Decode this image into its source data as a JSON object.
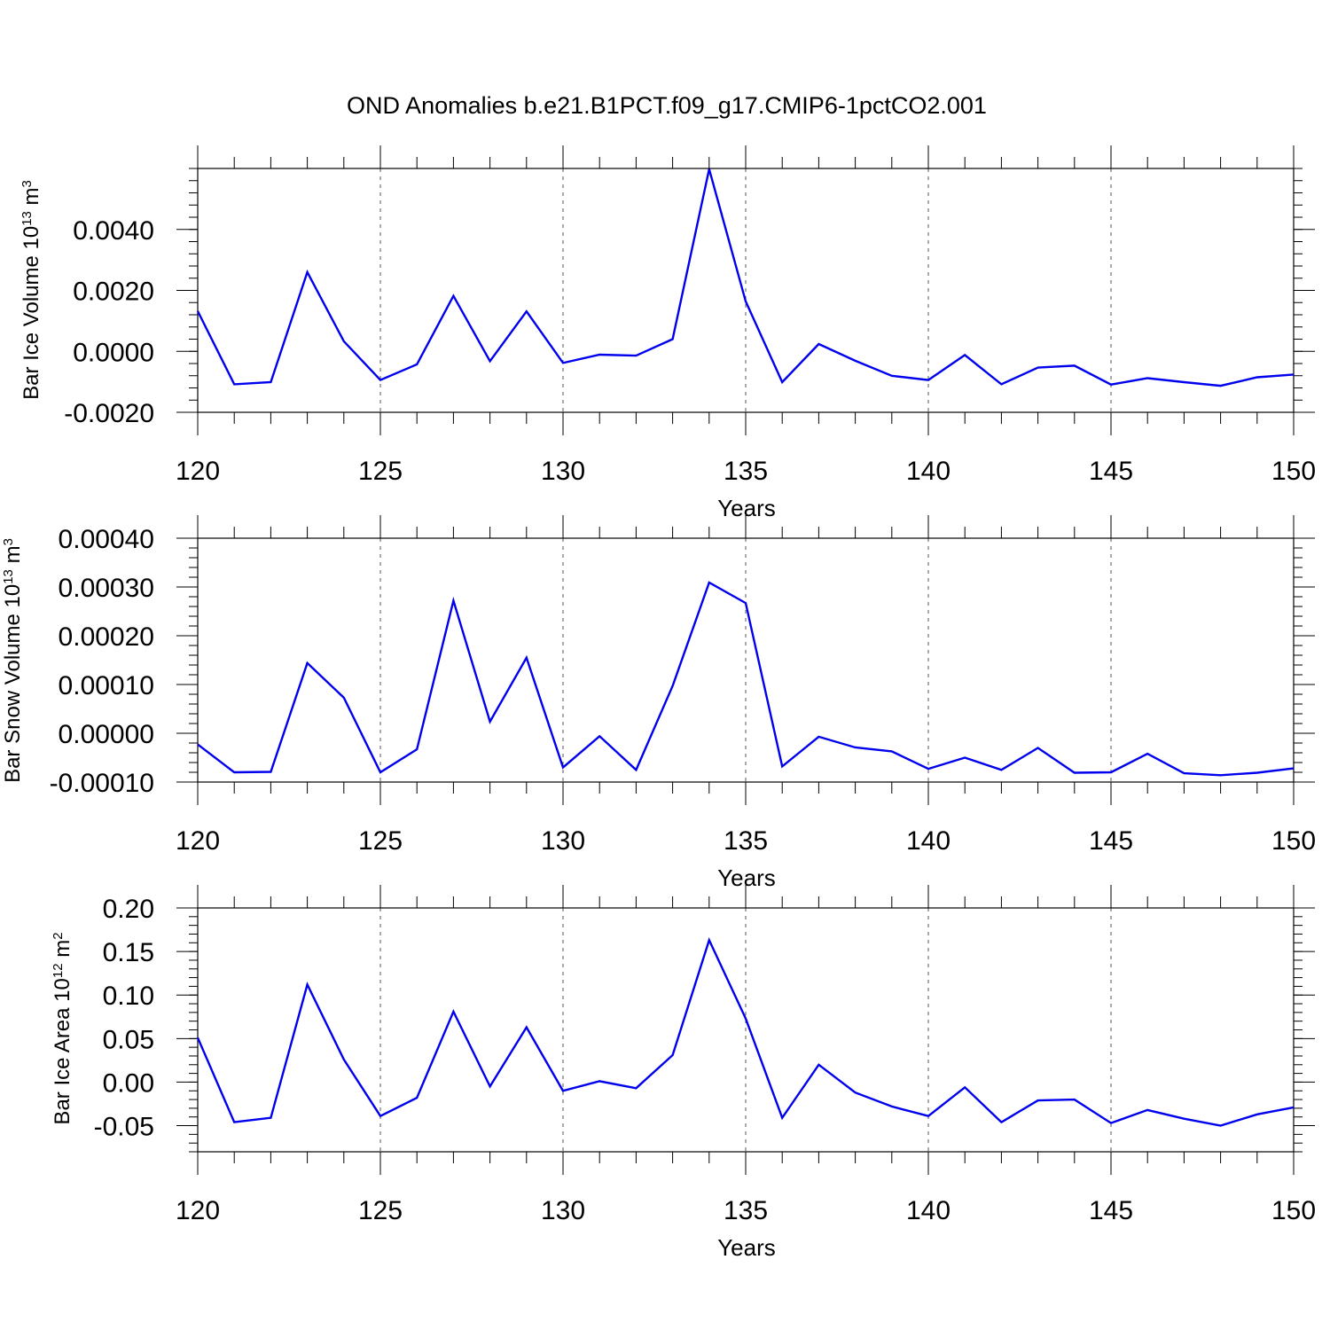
{
  "title": "OND Anomalies b.e21.B1PCT.f09_g17.CMIP6-1pctCO2.001",
  "chart_data": [
    {
      "type": "line",
      "ylabel": "Bar Ice Volume 10",
      "ylabel_exp": "13",
      "ylabel_unit": " m",
      "ylabel_unit_exp": "3",
      "xlabel": "Years",
      "xlim": [
        120,
        150
      ],
      "ylim": [
        -0.002,
        0.006
      ],
      "yticks": [
        -0.002,
        0.0,
        0.002,
        0.004
      ],
      "ytick_labels": [
        "-0.0020",
        "0.0000",
        "0.0020",
        "0.0040"
      ],
      "xticks": [
        120,
        125,
        130,
        135,
        140,
        145,
        150
      ],
      "xtick_labels": [
        "120",
        "125",
        "130",
        "135",
        "140",
        "145",
        "150"
      ],
      "grid_x": [
        125,
        130,
        135,
        140,
        145
      ],
      "color": "#0000ee",
      "x": [
        120,
        121,
        122,
        123,
        124,
        125,
        126,
        127,
        128,
        129,
        130,
        131,
        132,
        133,
        134,
        135,
        136,
        137,
        138,
        139,
        140,
        141,
        142,
        143,
        144,
        145,
        146,
        147,
        148,
        149,
        150
      ],
      "y": [
        0.00132,
        -0.00108,
        -0.00101,
        0.0026,
        0.00033,
        -0.00094,
        -0.00043,
        0.00182,
        -0.00032,
        0.00131,
        -0.00038,
        -0.00011,
        -0.00014,
        0.0004,
        0.00598,
        0.00164,
        -0.00101,
        0.00024,
        -0.00031,
        -0.0008,
        -0.00094,
        -0.00012,
        -0.00108,
        -0.00053,
        -0.00047,
        -0.00109,
        -0.00088,
        -0.00101,
        -0.00113,
        -0.00085,
        -0.00076
      ]
    },
    {
      "type": "line",
      "ylabel": "Bar Snow Volume 10",
      "ylabel_exp": "13",
      "ylabel_unit": " m",
      "ylabel_unit_exp": "3",
      "xlabel": "Years",
      "xlim": [
        120,
        150
      ],
      "ylim": [
        -0.0001,
        0.0004
      ],
      "yticks": [
        -0.0001,
        0.0,
        0.0001,
        0.0002,
        0.0003,
        0.0004
      ],
      "ytick_labels": [
        "-0.00010",
        "0.00000",
        "0.00010",
        "0.00020",
        "0.00030",
        "0.00040"
      ],
      "xticks": [
        120,
        125,
        130,
        135,
        140,
        145,
        150
      ],
      "xtick_labels": [
        "120",
        "125",
        "130",
        "135",
        "140",
        "145",
        "150"
      ],
      "grid_x": [
        125,
        130,
        135,
        140,
        145
      ],
      "color": "#0000ee",
      "x": [
        120,
        121,
        122,
        123,
        124,
        125,
        126,
        127,
        128,
        129,
        130,
        131,
        132,
        133,
        134,
        135,
        136,
        137,
        138,
        139,
        140,
        141,
        142,
        143,
        144,
        145,
        146,
        147,
        148,
        149,
        150
      ],
      "y": [
        -2.3e-05,
        -8e-05,
        -7.9e-05,
        0.000144,
        7.3e-05,
        -8e-05,
        -3.3e-05,
        0.000272,
        2.4e-05,
        0.000155,
        -7e-05,
        -6e-06,
        -7.5e-05,
        9.7e-05,
        0.000309,
        0.000267,
        -6.8e-05,
        -7e-06,
        -2.9e-05,
        -3.7e-05,
        -7.3e-05,
        -5e-05,
        -7.5e-05,
        -3e-05,
        -8.1e-05,
        -8e-05,
        -4.2e-05,
        -8.2e-05,
        -8.6e-05,
        -8.1e-05,
        -7.2e-05
      ]
    },
    {
      "type": "line",
      "ylabel": "Bar Ice Area 10",
      "ylabel_exp": "12",
      "ylabel_unit": " m",
      "ylabel_unit_exp": "2",
      "xlabel": "Years",
      "xlim": [
        120,
        150
      ],
      "ylim": [
        -0.08,
        0.2
      ],
      "yticks": [
        -0.05,
        0.0,
        0.05,
        0.1,
        0.15,
        0.2
      ],
      "ytick_labels": [
        "-0.05",
        "0.00",
        "0.05",
        "0.10",
        "0.15",
        "0.20"
      ],
      "xticks": [
        120,
        125,
        130,
        135,
        140,
        145,
        150
      ],
      "xtick_labels": [
        "120",
        "125",
        "130",
        "135",
        "140",
        "145",
        "150"
      ],
      "grid_x": [
        125,
        130,
        135,
        140,
        145
      ],
      "color": "#0000ee",
      "x": [
        120,
        121,
        122,
        123,
        124,
        125,
        126,
        127,
        128,
        129,
        130,
        131,
        132,
        133,
        134,
        135,
        136,
        137,
        138,
        139,
        140,
        141,
        142,
        143,
        144,
        145,
        146,
        147,
        148,
        149,
        150
      ],
      "y": [
        0.051,
        -0.046,
        -0.041,
        0.112,
        0.026,
        -0.039,
        -0.018,
        0.081,
        -0.005,
        0.063,
        -0.01,
        0.001,
        -0.007,
        0.031,
        0.163,
        0.073,
        -0.041,
        0.02,
        -0.012,
        -0.028,
        -0.039,
        -0.006,
        -0.046,
        -0.021,
        -0.02,
        -0.047,
        -0.032,
        -0.042,
        -0.05,
        -0.037,
        -0.029
      ]
    }
  ]
}
